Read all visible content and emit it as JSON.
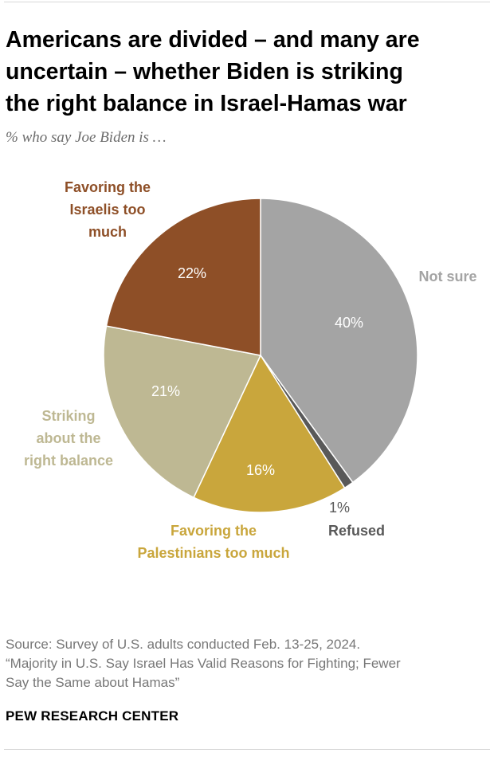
{
  "header": {
    "title": "Americans are divided – and many are\nuncertain – whether Biden is striking\nthe right balance in Israel-Hamas war",
    "subtitle": "% who say Joe Biden is …"
  },
  "chart_data": {
    "type": "pie",
    "slices": [
      {
        "label": "Not sure",
        "label_lines": [
          "Not sure"
        ],
        "value": 40,
        "value_label": "40%",
        "color": "#a4a4a4",
        "label_color": "#a4a4a4",
        "pct_color": "#ffffff"
      },
      {
        "label": "Refused",
        "label_lines": [
          "Refused"
        ],
        "value": 1,
        "value_label": "1%",
        "color": "#595959",
        "label_color": "#595959",
        "pct_color": "#595959"
      },
      {
        "label": "Favoring the Palestinians too much",
        "label_lines": [
          "Favoring the",
          "Palestinians too much"
        ],
        "value": 16,
        "value_label": "16%",
        "color": "#c9a63c",
        "label_color": "#c9a63c",
        "pct_color": "#ffffff"
      },
      {
        "label": "Striking about the right balance",
        "label_lines": [
          "Striking",
          "about the",
          "right balance"
        ],
        "value": 21,
        "value_label": "21%",
        "color": "#beb893",
        "label_color": "#beb893",
        "pct_color": "#ffffff"
      },
      {
        "label": "Favoring the Israelis too much",
        "label_lines": [
          "Favoring the",
          "Israelis too",
          "much"
        ],
        "value": 22,
        "value_label": "22%",
        "color": "#8e4f27",
        "label_color": "#8e4f27",
        "pct_color": "#ffffff"
      }
    ]
  },
  "footer": {
    "source": "Source: Survey of U.S. adults conducted Feb. 13-25, 2024.\n“Majority in U.S. Say Israel Has Valid Reasons for Fighting; Fewer\nSay the Same about Hamas”",
    "brand": "PEW RESEARCH CENTER"
  }
}
